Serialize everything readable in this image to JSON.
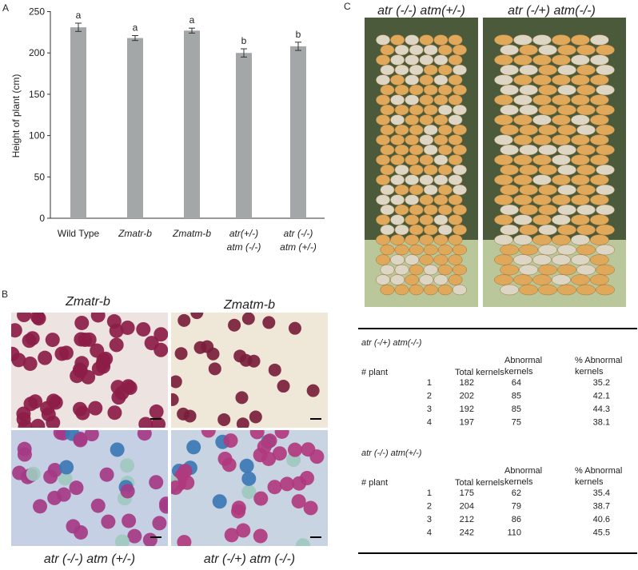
{
  "panel_labels": [
    "A",
    "B",
    "C"
  ],
  "chart_data": {
    "type": "bar",
    "ylabel": "Height of plant (cm)",
    "categories": [
      [
        "Wild Type"
      ],
      [
        "Zmatr-b"
      ],
      [
        "Zmatm-b"
      ],
      [
        "atr(+/-)",
        "atm (-/-)"
      ],
      [
        "atr (-/-)",
        "atm (+/-)"
      ]
    ],
    "values": [
      231,
      218,
      227,
      200,
      208
    ],
    "errors": [
      5,
      3,
      3,
      5,
      5
    ],
    "annotations": [
      "a",
      "a",
      "a",
      "b",
      "b"
    ],
    "color": "#a3a7a8",
    "ylim": [
      0,
      250
    ],
    "yticks": [
      0,
      50,
      100,
      150,
      200,
      250
    ]
  },
  "micrographs": [
    "Zmatr-b",
    "Zmatm-b",
    "atr (-/-) atm (+/-)",
    "atr (-/+) atm (-/-)"
  ],
  "ear_photos": [
    "atr (-/-) atm(+/-)",
    "atr (-/+) atm(-/-)"
  ],
  "table": {
    "headers": [
      [
        "# plant"
      ],
      [
        "Total kernels"
      ],
      [
        "Abnormal",
        "kernels"
      ],
      [
        "% Abnormal",
        "kernels"
      ]
    ],
    "sections": [
      {
        "title": "atr (-/+) atm(-/-)",
        "rows": [
          [
            1,
            182,
            64,
            35.2
          ],
          [
            2,
            202,
            85,
            42.1
          ],
          [
            3,
            192,
            85,
            44.3
          ],
          [
            4,
            197,
            75,
            38.1
          ]
        ]
      },
      {
        "title": "atr (-/-) atm(+/-)",
        "rows": [
          [
            1,
            175,
            62,
            35.4
          ],
          [
            2,
            204,
            79,
            38.7
          ],
          [
            3,
            212,
            86,
            40.6
          ],
          [
            4,
            242,
            110,
            45.5
          ]
        ]
      }
    ]
  }
}
